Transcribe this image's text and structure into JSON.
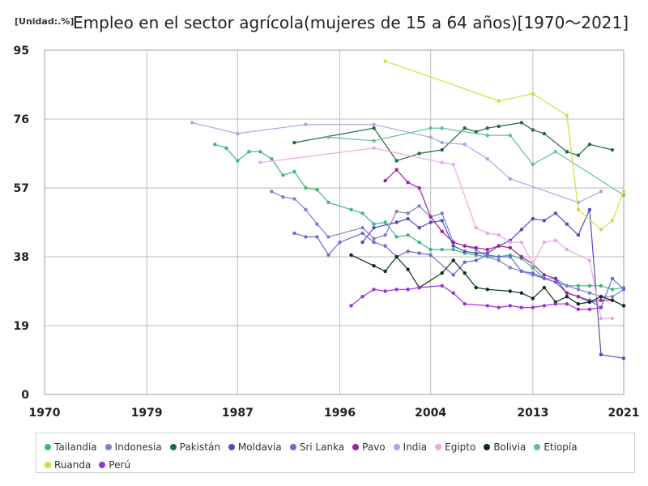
{
  "unit_label": "[Unidad:.%]",
  "title": "Empleo en el sector agrícola(mujeres de 15 a 64 años)[1970～2021]",
  "chart_data": {
    "type": "line",
    "title": "Empleo en el sector agrícola(mujeres de 15 a 64 años)[1970～2021]",
    "unit": "%",
    "xlim": [
      1970,
      2021
    ],
    "ylim": [
      0,
      95
    ],
    "x_ticks": [
      1970,
      1979,
      1987,
      1996,
      2004,
      2013,
      2021
    ],
    "y_ticks": [
      0,
      19,
      38,
      57,
      76,
      95
    ],
    "grid": true,
    "legend_position": "bottom",
    "series": [
      {
        "name": "Tailandia",
        "color": "#3cb87a",
        "points": [
          [
            1985,
            69
          ],
          [
            1986,
            68
          ],
          [
            1987,
            64.5
          ],
          [
            1988,
            67
          ],
          [
            1989,
            67
          ],
          [
            1990,
            65
          ],
          [
            1991,
            60.5
          ],
          [
            1992,
            61.5
          ],
          [
            1993,
            57
          ],
          [
            1994,
            56.5
          ],
          [
            1995,
            53
          ],
          [
            1997,
            51
          ],
          [
            1998,
            50
          ],
          [
            1999,
            47
          ],
          [
            2000,
            47.5
          ],
          [
            2001,
            43.5
          ],
          [
            2002,
            44
          ],
          [
            2003,
            42
          ],
          [
            2004,
            40
          ],
          [
            2005,
            40
          ],
          [
            2006,
            40
          ],
          [
            2007,
            39
          ],
          [
            2008,
            38.5
          ],
          [
            2009,
            38
          ],
          [
            2010,
            38
          ],
          [
            2011,
            38.5
          ],
          [
            2012,
            37.5
          ],
          [
            2013,
            35
          ],
          [
            2014,
            32
          ],
          [
            2015,
            31
          ],
          [
            2016,
            30
          ],
          [
            2017,
            30
          ],
          [
            2018,
            30
          ],
          [
            2019,
            30
          ],
          [
            2020,
            29
          ],
          [
            2021,
            29.5
          ]
        ]
      },
      {
        "name": "Indonesia",
        "color": "#7f7fd0",
        "points": [
          [
            1990,
            56
          ],
          [
            1991,
            54.5
          ],
          [
            1992,
            54
          ],
          [
            1993,
            51
          ],
          [
            1994,
            47
          ],
          [
            1995,
            43.5
          ],
          [
            1998,
            46
          ],
          [
            1999,
            43
          ],
          [
            2000,
            44
          ],
          [
            2001,
            50.5
          ],
          [
            2002,
            50
          ],
          [
            2003,
            52
          ],
          [
            2004,
            49
          ],
          [
            2005,
            50
          ],
          [
            2006,
            42
          ],
          [
            2007,
            41
          ],
          [
            2008,
            40
          ],
          [
            2009,
            38
          ],
          [
            2010,
            37
          ],
          [
            2011,
            35
          ],
          [
            2012,
            34
          ],
          [
            2013,
            33
          ],
          [
            2014,
            32
          ],
          [
            2015,
            32
          ],
          [
            2016,
            30
          ],
          [
            2017,
            29
          ],
          [
            2018,
            28
          ],
          [
            2019,
            27
          ],
          [
            2020,
            27
          ],
          [
            2021,
            29
          ]
        ]
      },
      {
        "name": "Pakistán",
        "color": "#1f6b3c",
        "points": [
          [
            1992,
            69.5
          ],
          [
            1999,
            73.5
          ],
          [
            2001,
            64.5
          ],
          [
            2003,
            66.5
          ],
          [
            2005,
            67.5
          ],
          [
            2007,
            73.5
          ],
          [
            2008,
            72.5
          ],
          [
            2009,
            73.5
          ],
          [
            2010,
            74
          ],
          [
            2012,
            75
          ],
          [
            2013,
            73
          ],
          [
            2014,
            72
          ],
          [
            2016,
            67
          ],
          [
            2017,
            66
          ],
          [
            2018,
            69
          ],
          [
            2020,
            67.5
          ]
        ]
      },
      {
        "name": "Moldavia",
        "color": "#4e4ebc",
        "points": [
          [
            1998,
            42
          ],
          [
            1999,
            46
          ],
          [
            2001,
            47.5
          ],
          [
            2002,
            48.5
          ],
          [
            2003,
            46
          ],
          [
            2004,
            47.5
          ],
          [
            2005,
            48
          ],
          [
            2006,
            41
          ],
          [
            2007,
            39.5
          ],
          [
            2008,
            39
          ],
          [
            2009,
            39
          ],
          [
            2010,
            41
          ],
          [
            2011,
            42.5
          ],
          [
            2012,
            45.5
          ],
          [
            2013,
            48.5
          ],
          [
            2014,
            48
          ],
          [
            2015,
            50
          ],
          [
            2016,
            47
          ],
          [
            2017,
            44
          ],
          [
            2018,
            51
          ],
          [
            2019,
            11
          ],
          [
            2021,
            10
          ]
        ]
      },
      {
        "name": "Sri Lanka",
        "color": "#6a6ad6",
        "points": [
          [
            1992,
            44.5
          ],
          [
            1993,
            43.5
          ],
          [
            1994,
            43.5
          ],
          [
            1995,
            38.5
          ],
          [
            1996,
            42
          ],
          [
            1998,
            44.5
          ],
          [
            1999,
            42
          ],
          [
            2000,
            41
          ],
          [
            2001,
            38
          ],
          [
            2002,
            39.5
          ],
          [
            2003,
            39
          ],
          [
            2004,
            38.5
          ],
          [
            2006,
            33
          ],
          [
            2007,
            36.5
          ],
          [
            2008,
            37
          ],
          [
            2009,
            38.5
          ],
          [
            2010,
            38
          ],
          [
            2011,
            38
          ],
          [
            2012,
            34
          ],
          [
            2013,
            33.5
          ],
          [
            2014,
            32
          ],
          [
            2015,
            31
          ],
          [
            2016,
            28
          ],
          [
            2017,
            27
          ],
          [
            2018,
            26
          ],
          [
            2019,
            24
          ],
          [
            2020,
            32
          ],
          [
            2021,
            29
          ]
        ]
      },
      {
        "name": "Pavo",
        "color": "#a020a0",
        "points": [
          [
            2000,
            59
          ],
          [
            2001,
            62
          ],
          [
            2002,
            58.5
          ],
          [
            2003,
            57
          ],
          [
            2004,
            49
          ],
          [
            2005,
            45
          ],
          [
            2006,
            42
          ],
          [
            2007,
            41
          ],
          [
            2008,
            40.5
          ],
          [
            2009,
            40
          ],
          [
            2010,
            41
          ],
          [
            2011,
            40.5
          ],
          [
            2012,
            38
          ],
          [
            2013,
            36
          ],
          [
            2014,
            33
          ],
          [
            2015,
            32
          ],
          [
            2016,
            28
          ],
          [
            2017,
            27
          ],
          [
            2018,
            25.5
          ],
          [
            2019,
            26
          ],
          [
            2020,
            26
          ],
          [
            2021,
            24.5
          ]
        ]
      },
      {
        "name": "India",
        "color": "#a6a6e8",
        "points": [
          [
            1983,
            75
          ],
          [
            1987,
            72
          ],
          [
            1993,
            74.5
          ],
          [
            1999,
            74.5
          ],
          [
            2004,
            71
          ],
          [
            2005,
            69.5
          ],
          [
            2007,
            69
          ],
          [
            2009,
            65
          ],
          [
            2011,
            59.5
          ],
          [
            2017,
            53
          ],
          [
            2019,
            56
          ]
        ]
      },
      {
        "name": "Egipto",
        "color": "#eba8e3",
        "points": [
          [
            1989,
            64
          ],
          [
            1999,
            68
          ],
          [
            2005,
            64
          ],
          [
            2006,
            63.5
          ],
          [
            2008,
            46
          ],
          [
            2009,
            44.5
          ],
          [
            2010,
            44
          ],
          [
            2011,
            42
          ],
          [
            2012,
            42
          ],
          [
            2013,
            36
          ],
          [
            2014,
            42
          ],
          [
            2015,
            42.5
          ],
          [
            2016,
            40
          ],
          [
            2018,
            37
          ],
          [
            2019,
            21
          ],
          [
            2020,
            21
          ]
        ]
      },
      {
        "name": "Bolivia",
        "color": "#0b2e17",
        "points": [
          [
            1997,
            38.5
          ],
          [
            1999,
            35.5
          ],
          [
            2000,
            34
          ],
          [
            2001,
            38
          ],
          [
            2002,
            34.5
          ],
          [
            2003,
            29.5
          ],
          [
            2005,
            33.5
          ],
          [
            2006,
            37
          ],
          [
            2007,
            33.5
          ],
          [
            2008,
            29.5
          ],
          [
            2009,
            29
          ],
          [
            2011,
            28.5
          ],
          [
            2012,
            28
          ],
          [
            2013,
            26.5
          ],
          [
            2014,
            29.5
          ],
          [
            2015,
            25.5
          ],
          [
            2016,
            27
          ],
          [
            2017,
            25
          ],
          [
            2018,
            25.5
          ],
          [
            2019,
            27
          ],
          [
            2020,
            26
          ],
          [
            2021,
            24.5
          ]
        ]
      },
      {
        "name": "Etiopía",
        "color": "#5cc09a",
        "points": [
          [
            1995,
            71
          ],
          [
            1999,
            70
          ],
          [
            2004,
            73.5
          ],
          [
            2005,
            73.5
          ],
          [
            2009,
            71.5
          ],
          [
            2011,
            71.5
          ],
          [
            2013,
            63.5
          ],
          [
            2015,
            67
          ],
          [
            2021,
            55
          ]
        ]
      },
      {
        "name": "Ruanda",
        "color": "#cfe040",
        "points": [
          [
            2000,
            92
          ],
          [
            2010,
            81
          ],
          [
            2013,
            83
          ],
          [
            2016,
            77
          ],
          [
            2017,
            51
          ],
          [
            2019,
            45.5
          ],
          [
            2020,
            48
          ],
          [
            2021,
            56
          ]
        ]
      },
      {
        "name": "Perú",
        "color": "#9b30d8",
        "points": [
          [
            1997,
            24.5
          ],
          [
            1998,
            27
          ],
          [
            1999,
            29
          ],
          [
            2000,
            28.5
          ],
          [
            2001,
            29
          ],
          [
            2002,
            29
          ],
          [
            2003,
            29.5
          ],
          [
            2005,
            30
          ],
          [
            2006,
            28
          ],
          [
            2007,
            25
          ],
          [
            2009,
            24.5
          ],
          [
            2010,
            24
          ],
          [
            2011,
            24.5
          ],
          [
            2012,
            24
          ],
          [
            2013,
            24
          ],
          [
            2014,
            24.5
          ],
          [
            2015,
            25
          ],
          [
            2016,
            25
          ],
          [
            2017,
            23.5
          ],
          [
            2018,
            23.5
          ],
          [
            2019,
            24
          ]
        ]
      }
    ]
  }
}
